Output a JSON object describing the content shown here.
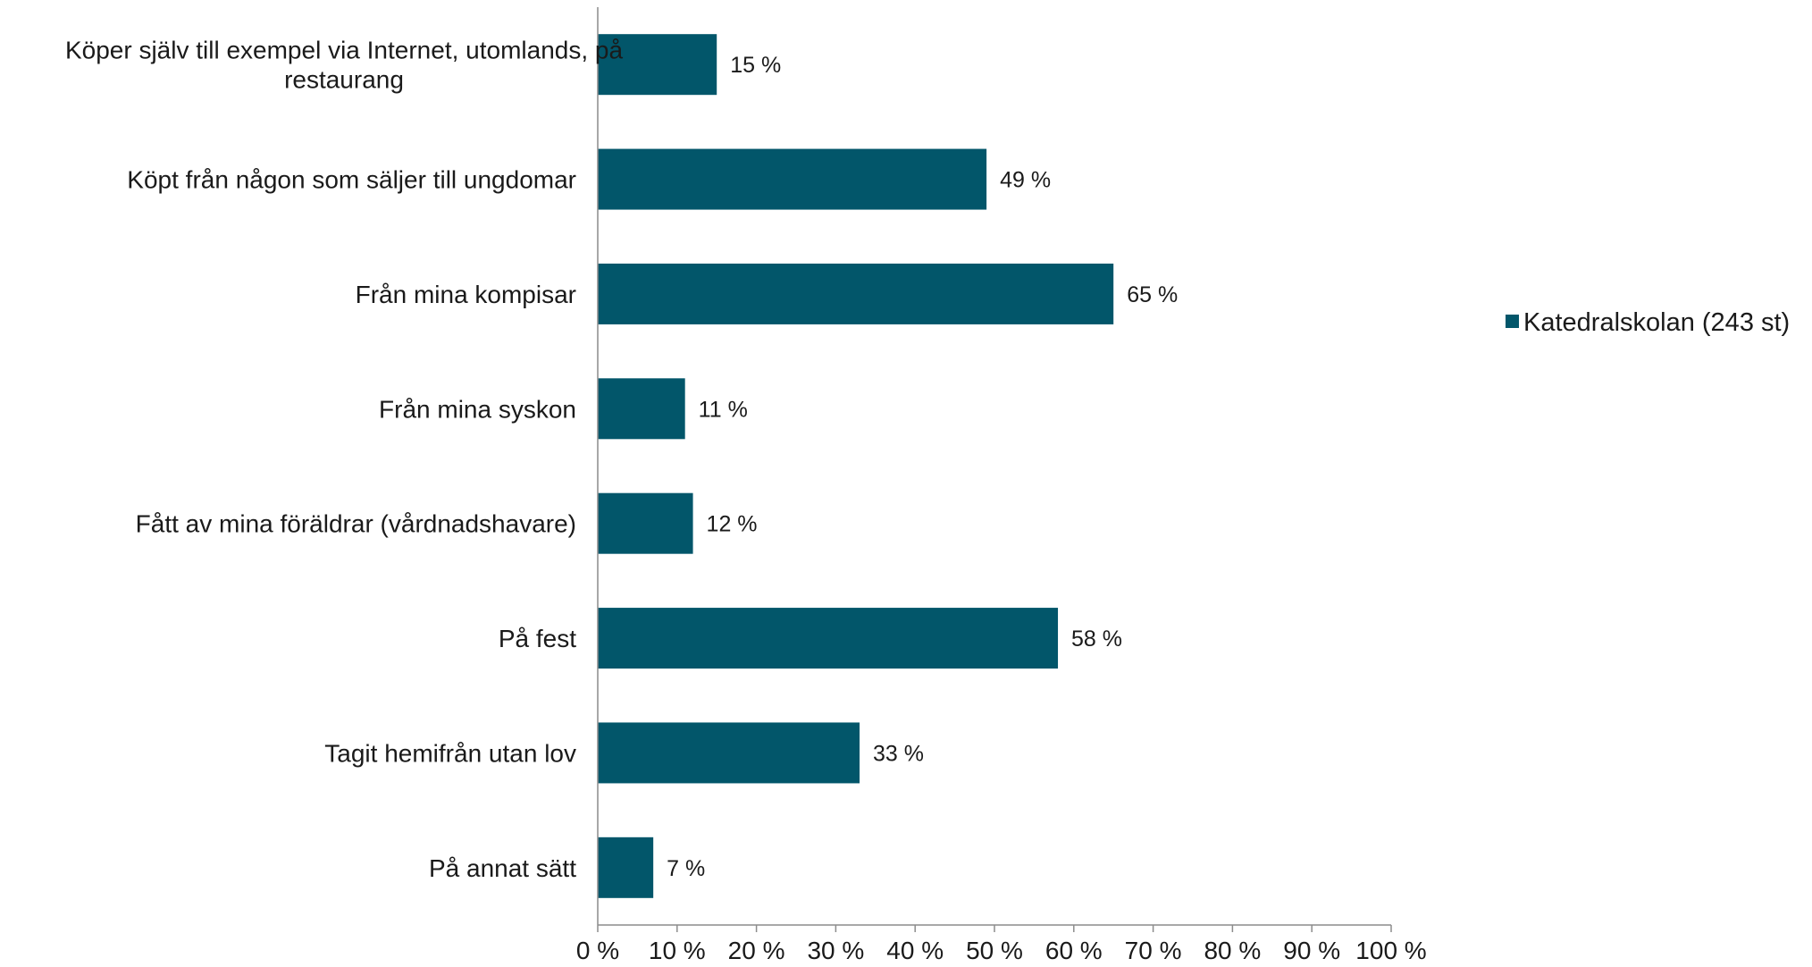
{
  "chart_data": {
    "type": "bar",
    "orientation": "horizontal",
    "categories": [
      [
        "Köper själv till exempel via Internet, utomlands, på",
        "restaurang"
      ],
      [
        "Köpt från någon som säljer till ungdomar"
      ],
      [
        "Från mina kompisar"
      ],
      [
        "Från mina syskon"
      ],
      [
        "Fått av mina föräldrar (vårdnadshavare)"
      ],
      [
        "På fest"
      ],
      [
        "Tagit hemifrån utan lov"
      ],
      [
        "På annat sätt"
      ]
    ],
    "series": [
      {
        "name": "Katedralskolan (243 st)",
        "values": [
          15,
          49,
          65,
          11,
          12,
          58,
          33,
          7
        ],
        "labels": [
          "15 %",
          "49 %",
          "65 %",
          "11 %",
          "12 %",
          "58 %",
          "33 %",
          "7 %"
        ],
        "color": "#02566a"
      }
    ],
    "xlim": [
      0,
      100
    ],
    "xticks": [
      0,
      10,
      20,
      30,
      40,
      50,
      60,
      70,
      80,
      90,
      100
    ],
    "xtick_labels": [
      "0 %",
      "10 %",
      "20 %",
      "30 %",
      "40 %",
      "50 %",
      "60 %",
      "70 %",
      "80 %",
      "90 %",
      "100 %"
    ],
    "title": "",
    "xlabel": "",
    "ylabel": "",
    "grid": false,
    "legend_position": "right",
    "axis_color": "#8c8c8c"
  }
}
